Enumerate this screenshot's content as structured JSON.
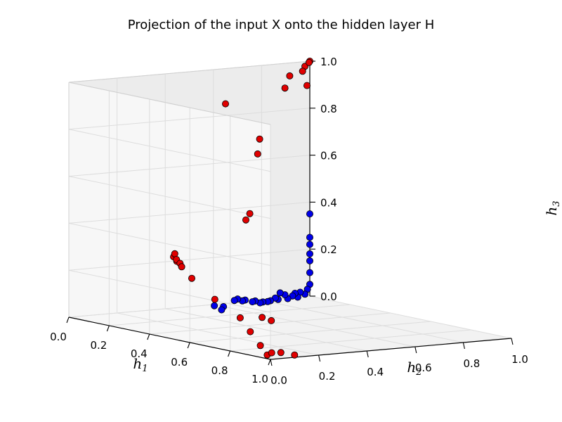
{
  "chart_data": {
    "type": "scatter",
    "title": "Projection of the input X onto the hidden layer H",
    "projection": "3d",
    "grid": true,
    "axes": {
      "x": {
        "label_base": "h",
        "label_sub": "1",
        "range": [
          0,
          1
        ],
        "ticks": [
          "0.0",
          "0.2",
          "0.4",
          "0.6",
          "0.8",
          "1.0"
        ]
      },
      "y": {
        "label_base": "h",
        "label_sub": "2",
        "range": [
          0,
          1
        ],
        "ticks": [
          "0.0",
          "0.2",
          "0.4",
          "0.6",
          "0.8",
          "1.0"
        ]
      },
      "z": {
        "label_base": "h",
        "label_sub": "3",
        "range": [
          0,
          1
        ],
        "ticks": [
          "0.0",
          "0.2",
          "0.4",
          "0.6",
          "0.8",
          "1.0"
        ]
      }
    },
    "series": [
      {
        "color": "#e00000",
        "points": [
          [
            0.95,
            0.0,
            0.05
          ],
          [
            0.96,
            0.02,
            0.01
          ],
          [
            0.97,
            0.03,
            0.02
          ],
          [
            0.98,
            0.06,
            0.02
          ],
          [
            1.0,
            0.1,
            0.01
          ],
          [
            0.9,
            0.0,
            0.1
          ],
          [
            0.85,
            0.0,
            0.15
          ],
          [
            0.7,
            0.02,
            0.2
          ],
          [
            0.55,
            0.05,
            0.26
          ],
          [
            0.5,
            0.05,
            0.3
          ],
          [
            0.48,
            0.06,
            0.31
          ],
          [
            0.45,
            0.07,
            0.32
          ],
          [
            0.44,
            0.08,
            0.31
          ],
          [
            0.43,
            0.08,
            0.34
          ],
          [
            0.4,
            0.1,
            0.32
          ],
          [
            0.6,
            0.3,
            0.08
          ],
          [
            0.55,
            0.38,
            0.05
          ],
          [
            0.4,
            0.4,
            0.45
          ],
          [
            0.3,
            0.5,
            0.45
          ],
          [
            0.1,
            0.7,
            0.65
          ],
          [
            0.05,
            0.75,
            0.7
          ],
          [
            0.0,
            0.65,
            0.85
          ],
          [
            0.02,
            0.88,
            0.9
          ],
          [
            0.02,
            0.9,
            0.95
          ],
          [
            0.01,
            0.98,
            0.9
          ],
          [
            0.0,
            1.0,
            1.0
          ],
          [
            0.02,
            0.98,
            1.0
          ],
          [
            0.0,
            0.98,
            0.98
          ],
          [
            0.0,
            0.97,
            0.96
          ]
        ]
      },
      {
        "color": "#0000e8",
        "points": [
          [
            0.1,
            0.55,
            0.0
          ],
          [
            0.1,
            0.52,
            0.02
          ],
          [
            0.05,
            0.6,
            0.0
          ],
          [
            0.08,
            0.62,
            0.03
          ],
          [
            0.06,
            0.65,
            0.03
          ],
          [
            0.06,
            0.67,
            0.02
          ],
          [
            0.05,
            0.69,
            0.02
          ],
          [
            0.05,
            0.72,
            0.01
          ],
          [
            0.04,
            0.74,
            0.01
          ],
          [
            0.04,
            0.76,
            0.0
          ],
          [
            0.03,
            0.78,
            0.0
          ],
          [
            0.03,
            0.8,
            0.0
          ],
          [
            0.02,
            0.82,
            0.0
          ],
          [
            0.02,
            0.84,
            0.01
          ],
          [
            0.01,
            0.86,
            0.0
          ],
          [
            0.02,
            0.86,
            0.03
          ],
          [
            0.02,
            0.88,
            0.02
          ],
          [
            0.01,
            0.9,
            0.0
          ],
          [
            0.01,
            0.92,
            0.01
          ],
          [
            0.01,
            0.93,
            0.02
          ],
          [
            0.0,
            0.95,
            0.0
          ],
          [
            0.0,
            0.96,
            0.02
          ],
          [
            0.0,
            0.98,
            0.01
          ],
          [
            0.0,
            0.99,
            0.03
          ],
          [
            0.0,
            1.0,
            0.05
          ],
          [
            0.0,
            1.0,
            0.1
          ],
          [
            0.0,
            1.0,
            0.15
          ],
          [
            0.0,
            1.0,
            0.18
          ],
          [
            0.0,
            1.0,
            0.22
          ],
          [
            0.0,
            1.0,
            0.25
          ],
          [
            0.0,
            1.0,
            0.35
          ]
        ]
      }
    ]
  }
}
